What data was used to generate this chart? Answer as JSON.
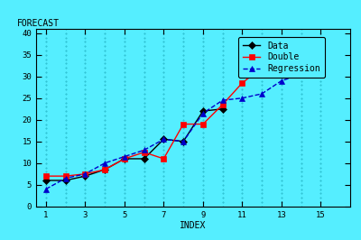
{
  "title": "FORECAST",
  "xlabel": "INDEX",
  "background_color": "#55EEFF",
  "x_data": [
    1,
    2,
    3,
    4,
    5,
    6,
    7,
    8,
    9,
    10,
    11,
    12,
    13,
    14,
    15
  ],
  "data_y": [
    6.0,
    6.0,
    7.0,
    8.5,
    11.0,
    11.0,
    15.5,
    15.0,
    22.0,
    22.5,
    null,
    null,
    null,
    null,
    null
  ],
  "double_y": [
    7.0,
    7.0,
    7.5,
    8.5,
    11.0,
    12.5,
    11.0,
    19.0,
    19.0,
    23.5,
    28.5,
    32.0,
    35.0,
    38.0,
    null
  ],
  "regression_y": [
    4.0,
    6.5,
    7.5,
    10.0,
    11.5,
    13.0,
    15.5,
    15.0,
    21.5,
    24.5,
    25.0,
    26.0,
    29.0,
    30.5,
    31.0
  ],
  "xlim": [
    0.5,
    16.5
  ],
  "ylim": [
    0,
    41
  ],
  "yticks": [
    0,
    5,
    10,
    15,
    20,
    25,
    30,
    35,
    40
  ],
  "xticks": [
    1,
    3,
    5,
    7,
    9,
    11,
    13,
    15
  ],
  "legend_labels": [
    "Data",
    "Double",
    "Regression"
  ],
  "data_color": "#000000",
  "double_color": "#FF0000",
  "regression_color": "#0000CC",
  "grid_color": "#22BBCC",
  "title_fontsize": 7,
  "label_fontsize": 7,
  "tick_fontsize": 6.5,
  "legend_fontsize": 7,
  "linewidth": 1.0,
  "markersize": 4
}
